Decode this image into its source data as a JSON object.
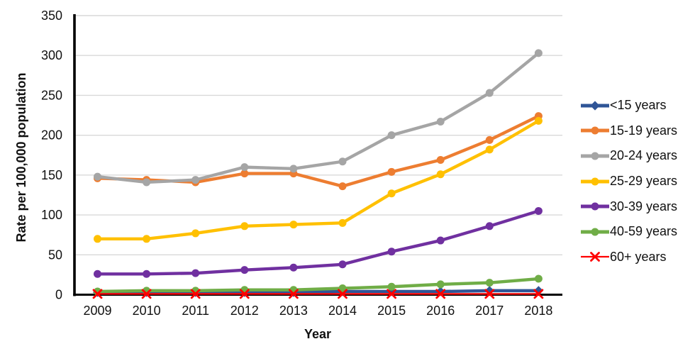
{
  "figure": {
    "background_color": "#FFFFFF",
    "gridline_color": "#D9D9D9",
    "axis_color": "#000000",
    "text_color": "#111111"
  },
  "chart_data": {
    "type": "line",
    "title": "",
    "xlabel": "Year",
    "ylabel": "Rate per 100,000 population",
    "x_tick_labels": [
      "2009",
      "2010",
      "2011",
      "2012",
      "2013",
      "2014",
      "2015",
      "2016",
      "2017",
      "2018"
    ],
    "y_tick_labels": [
      "0",
      "50",
      "100",
      "150",
      "200",
      "250",
      "300",
      "350"
    ],
    "ylim": [
      0,
      350
    ],
    "y_tick_interval": 50,
    "grid": "horizontal",
    "legend_position": "right",
    "categories": [
      2009,
      2010,
      2011,
      2012,
      2013,
      2014,
      2015,
      2016,
      2017,
      2018
    ],
    "series": [
      {
        "name": "<15 years",
        "color": "#2F5597",
        "marker": "diamond",
        "values": [
          3,
          3,
          3,
          3,
          3,
          4,
          4,
          4,
          5,
          5
        ]
      },
      {
        "name": "15-19 years",
        "color": "#ED7D31",
        "marker": "circle",
        "values": [
          146,
          144,
          141,
          152,
          152,
          136,
          154,
          169,
          194,
          224
        ]
      },
      {
        "name": "20-24 years",
        "color": "#A5A5A5",
        "marker": "circle",
        "values": [
          148,
          141,
          144,
          160,
          158,
          167,
          200,
          217,
          253,
          303
        ]
      },
      {
        "name": "25-29 years",
        "color": "#FFC000",
        "marker": "circle",
        "values": [
          70,
          70,
          77,
          86,
          88,
          90,
          127,
          151,
          182,
          218
        ]
      },
      {
        "name": "30-39 years",
        "color": "#7030A0",
        "marker": "circle",
        "values": [
          26,
          26,
          27,
          31,
          34,
          38,
          54,
          68,
          86,
          105
        ]
      },
      {
        "name": "40-59 years",
        "color": "#70AD47",
        "marker": "circle",
        "values": [
          4,
          5,
          5,
          6,
          6,
          8,
          10,
          13,
          15,
          20
        ]
      },
      {
        "name": "60+ years",
        "color": "#FF0000",
        "marker": "x",
        "values": [
          1,
          1,
          1,
          1,
          1,
          1,
          1,
          1,
          1,
          1
        ]
      }
    ]
  }
}
